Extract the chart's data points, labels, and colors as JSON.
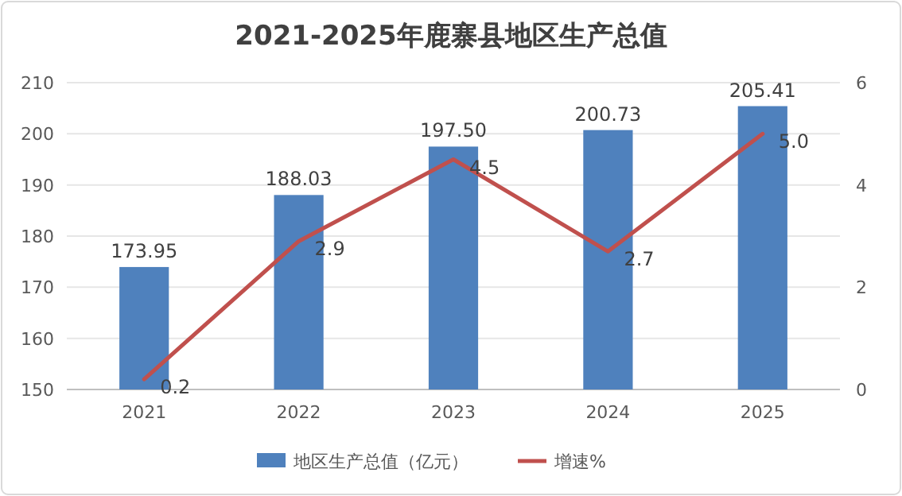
{
  "chart_data": {
    "type": "bar",
    "title": "2021-2025年鹿寨县地区生产总值",
    "categories": [
      "2021",
      "2022",
      "2023",
      "2024",
      "2025"
    ],
    "series": [
      {
        "name": "地区生产总值（亿元）",
        "color": "#4f81bd",
        "values": [
          173.95,
          188.03,
          197.5,
          200.73,
          205.41
        ],
        "value_labels": [
          "173.95",
          "188.03",
          "197.50",
          "200.73",
          "205.41"
        ]
      },
      {
        "name": "增速%",
        "type": "line",
        "axis": "y2",
        "color": "#c0504d",
        "values": [
          0.2,
          2.9,
          4.5,
          2.7,
          5.0
        ],
        "value_labels": [
          "0.2",
          "2.9",
          "4.5",
          "2.7",
          "5.0"
        ]
      }
    ],
    "ylim": [
      150,
      210
    ],
    "yticks": [
      150,
      160,
      170,
      180,
      190,
      200,
      210
    ],
    "y2lim": [
      0,
      6
    ],
    "y2ticks": [
      0,
      2,
      4,
      6
    ],
    "grid": "y",
    "legend": "bottom"
  }
}
